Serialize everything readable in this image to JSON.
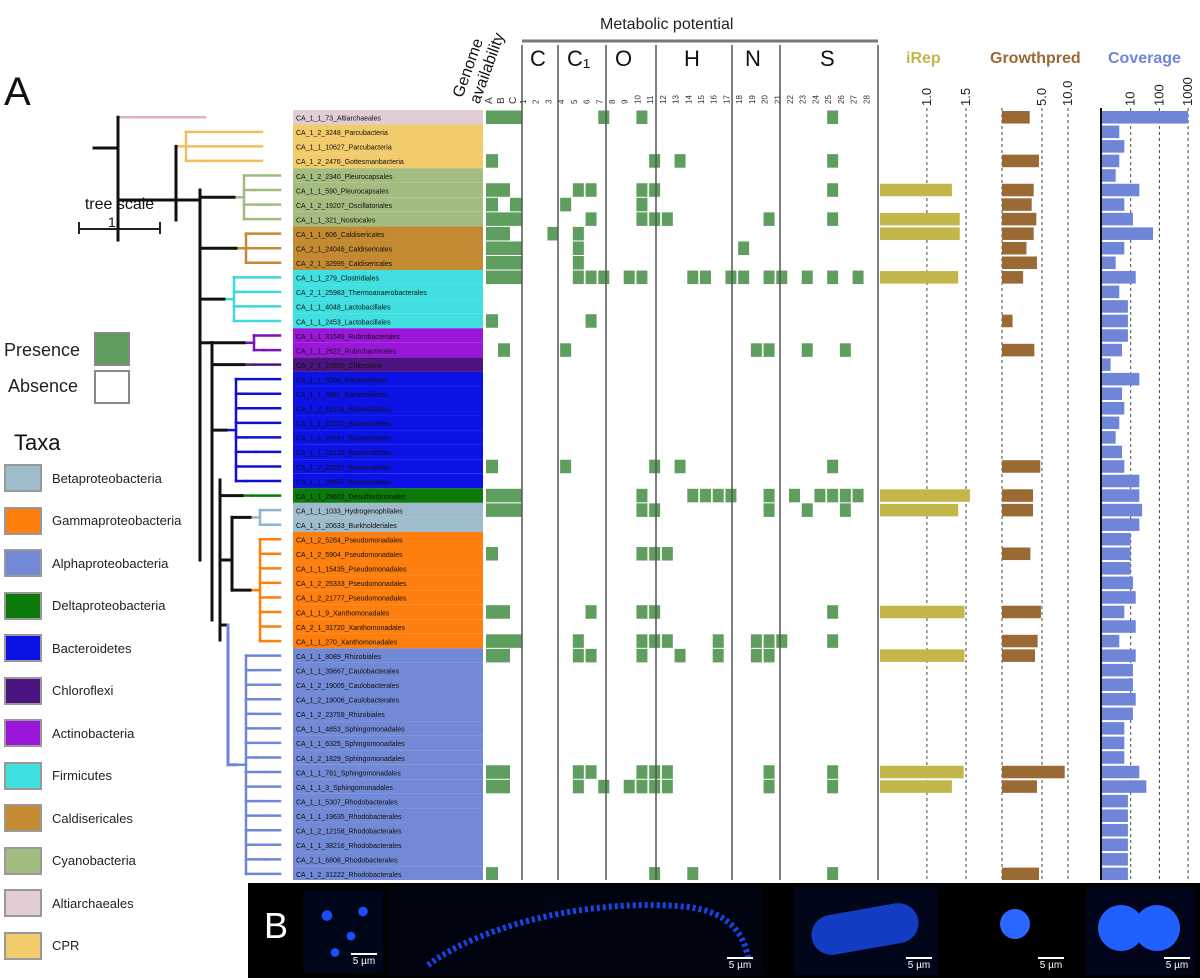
{
  "panel_a_label": "A",
  "panel_b_label": "B",
  "tree_scale": {
    "label": "tree scale",
    "value": "1"
  },
  "presence_label": "Presence",
  "absence_label": "Absence",
  "taxa_title": "Taxa",
  "taxa": [
    {
      "name": "Betaproteobacteria",
      "color": "#9fbccc"
    },
    {
      "name": "Gammaproteobacteria",
      "color": "#ff7f0e"
    },
    {
      "name": "Alphaproteobacteria",
      "color": "#7289d6"
    },
    {
      "name": "Deltaproteobacteria",
      "color": "#0b7a0b"
    },
    {
      "name": "Bacteroidetes",
      "color": "#0a12e6"
    },
    {
      "name": "Chloroflexi",
      "color": "#4b1480"
    },
    {
      "name": "Actinobacteria",
      "color": "#9a16d8"
    },
    {
      "name": "Firmicutes",
      "color": "#40e0e0"
    },
    {
      "name": "Caldisericales",
      "color": "#c48a32"
    },
    {
      "name": "Cyanobacteria",
      "color": "#a3bd80"
    },
    {
      "name": "Altiarchaeales",
      "color": "#e2cdd6"
    },
    {
      "name": "CPR",
      "color": "#f2cb6a"
    }
  ],
  "headers": {
    "genome": [
      "Genome",
      "availability"
    ],
    "metabolic": "Metabolic potential",
    "groups": [
      "C",
      "C₁",
      "O",
      "H",
      "N",
      "S"
    ],
    "iRep": "iRep",
    "growthpred": "Growthpred",
    "coverage": "Coverage",
    "abc": "A B C"
  },
  "iRep_ticks": [
    "1.0",
    "1.5"
  ],
  "growth_ticks": [
    "5.0",
    "10.0"
  ],
  "coverage_ticks": [
    "10",
    "100",
    "1000"
  ],
  "genomes": [
    "CA_1_1_73_Altiarchaeales",
    "CA_1_2_3248_Parcubacteria",
    "CA_1_1_10627_Parcubacteria",
    "CA_1_2_2476_Gottesmanbacteria",
    "CA_1_2_2340_Pleurocapsales",
    "CA_1_1_590_Pleurocapsales",
    "CA_1_2_19207_Oscillatoriales",
    "CA_1_1_321_Nostocales",
    "CA_1_1_606_Caldisericales",
    "CA_2_1_24046_Caldisericales",
    "CA_2_1_32995_Caldisericales",
    "CA_1_1_279_Clostridiales",
    "CA_2_1_25983_Thermoanaerobacterales",
    "CA_1_1_4048_Lactobacillales",
    "CA_1_1_2453_Lactobacillales",
    "CA_1_1_31549_Rubrobacterales",
    "CA_1_1_2622_Rubrobacterales",
    "CA_2_1_29690_Chloroflexi",
    "CA_1_1_5004_Bacteroidetes",
    "CA_1_1_2861_Bacteroidetes",
    "CA_1_2_19104_Bacteroidetes",
    "CA_1_1_22270_Bacteroidetes",
    "CA_1_2_25161_Bacteroidetes",
    "CA_1_1_22135_Bacteroidetes",
    "CA_1_2_20151_Bacteroidetes",
    "CA_1_1_29657_Bacteroidetes",
    "CA_1_1_29602_Desulfovibrionales",
    "CA_1_1_1033_Hydrogenophilales",
    "CA_1_1_20633_Burkholderiales",
    "CA_1_2_5284_Pseudomonadales",
    "CA_1_2_5904_Pseudomonadales",
    "CA_1_1_15435_Pseudomonadales",
    "CA_1_2_25333_Pseudomonadales",
    "CA_1_2_21777_Pseudomonadales",
    "CA_1_1_9_Xanthomonadales",
    "CA_2_1_31720_Xanthomonadales",
    "CA_1_1_270_Xanthomonadales",
    "CA_1_1_8089_Rhizobiales",
    "CA_1_1_39667_Caulobacterales",
    "CA_1_2_19005_Caulobacterales",
    "CA_1_2_19006_Caulobacterales",
    "CA_1_2_23759_Rhizobiales",
    "CA_1_1_4853_Sphingomonadales",
    "CA_1_1_6325_Sphingomonadales",
    "CA_1_2_1829_Sphingomonadales",
    "CA_1_1_781_Sphingomonadales",
    "CA_1_1_3_Sphingomonadales",
    "CA_1_1_5307_Rhodobacterales",
    "CA_1_1_19635_Rhodobacterales",
    "CA_1_2_12158_Rhodobacterales",
    "CA_1_1_38216_Rhodobacterales",
    "CA_2_1_6808_Rhodobacterales",
    "CA_1_2_31222_Rhodobacterales"
  ],
  "row_colors": [
    "#e2cdd6",
    "#f2cb6a",
    "#f2cb6a",
    "#f2cb6a",
    "#a3bd80",
    "#a3bd80",
    "#a3bd80",
    "#a3bd80",
    "#c48a32",
    "#c48a32",
    "#c48a32",
    "#40e0e0",
    "#40e0e0",
    "#40e0e0",
    "#40e0e0",
    "#9a16d8",
    "#9a16d8",
    "#4b1480",
    "#0a12e6",
    "#0a12e6",
    "#0a12e6",
    "#0a12e6",
    "#0a12e6",
    "#0a12e6",
    "#0a12e6",
    "#0a12e6",
    "#0b7a0b",
    "#9fbccc",
    "#9fbccc",
    "#ff7f0e",
    "#ff7f0e",
    "#ff7f0e",
    "#ff7f0e",
    "#ff7f0e",
    "#ff7f0e",
    "#ff7f0e",
    "#ff7f0e",
    "#7289d6",
    "#7289d6",
    "#7289d6",
    "#7289d6",
    "#7289d6",
    "#7289d6",
    "#7289d6",
    "#7289d6",
    "#7289d6",
    "#7289d6",
    "#7289d6",
    "#7289d6",
    "#7289d6",
    "#7289d6",
    "#7289d6",
    "#7289d6"
  ],
  "presence_color": "#5f9e5f",
  "iRep_color": "#c3b64a",
  "growth_color": "#9a6a35",
  "coverage_color": "#6f86d8",
  "presence_matrix": [
    [
      0,
      1,
      2,
      7,
      10,
      25
    ],
    [],
    [],
    [
      0,
      11,
      13,
      25
    ],
    [],
    [
      0,
      1,
      5,
      6,
      10,
      11,
      25
    ],
    [
      0,
      2,
      4,
      10
    ],
    [
      0,
      1,
      2,
      6,
      10,
      11,
      12,
      20,
      25
    ],
    [
      0,
      1,
      3,
      5
    ],
    [
      0,
      1,
      2,
      5,
      18
    ],
    [
      0,
      1,
      2,
      5
    ],
    [
      0,
      1,
      2,
      5,
      6,
      7,
      9,
      10,
      14,
      15,
      17,
      18,
      20,
      21,
      23,
      25,
      27
    ],
    [],
    [],
    [
      0,
      6
    ],
    [],
    [
      1,
      4,
      19,
      20,
      23,
      26
    ],
    [],
    [],
    [],
    [],
    [],
    [],
    [],
    [
      0,
      4,
      11,
      13,
      25
    ],
    [],
    [
      0,
      1,
      2,
      10,
      14,
      15,
      16,
      17,
      20,
      22,
      24,
      25,
      26,
      27
    ],
    [
      0,
      1,
      2,
      10,
      11,
      20,
      23,
      26
    ],
    [],
    [],
    [
      0,
      10,
      11,
      12
    ],
    [],
    [],
    [],
    [
      0,
      1,
      6,
      10,
      11,
      25
    ],
    [],
    [
      0,
      1,
      2,
      5,
      10,
      11,
      12,
      16,
      19,
      20,
      21,
      25
    ],
    [
      0,
      1,
      5,
      6,
      10,
      13,
      16,
      19,
      20
    ],
    [],
    [],
    [],
    [],
    [],
    [],
    [],
    [
      0,
      1,
      5,
      6,
      10,
      11,
      12,
      20,
      25
    ],
    [
      0,
      1,
      5,
      7,
      9,
      10,
      11,
      12,
      20,
      25
    ],
    [],
    [],
    [],
    [],
    [],
    [
      0,
      11,
      14,
      25
    ]
  ],
  "iRep_values": [
    null,
    null,
    null,
    null,
    null,
    1.32,
    null,
    1.42,
    1.42,
    null,
    null,
    1.4,
    null,
    null,
    null,
    null,
    null,
    null,
    null,
    null,
    null,
    null,
    null,
    null,
    null,
    null,
    1.55,
    1.4,
    null,
    null,
    null,
    null,
    null,
    null,
    1.48,
    null,
    null,
    1.48,
    null,
    null,
    null,
    null,
    null,
    null,
    null,
    1.47,
    1.32,
    null,
    null,
    null,
    null,
    null,
    null
  ],
  "growth_values": [
    4.2,
    null,
    null,
    5.6,
    null,
    4.8,
    4.5,
    5.2,
    4.8,
    3.7,
    5.3,
    3.2,
    null,
    null,
    1.6,
    null,
    4.9,
    null,
    null,
    null,
    null,
    null,
    null,
    null,
    5.8,
    null,
    4.7,
    4.7,
    null,
    null,
    4.3,
    null,
    null,
    null,
    5.9,
    null,
    5.4,
    5.0,
    null,
    null,
    null,
    null,
    null,
    null,
    null,
    9.5,
    5.3,
    null,
    null,
    null,
    null,
    null,
    5.6
  ],
  "coverage_values": [
    1000,
    4,
    6,
    4,
    3,
    20,
    6,
    12,
    60,
    6,
    3,
    15,
    4,
    8,
    8,
    8,
    5,
    2,
    20,
    5,
    6,
    4,
    3,
    5,
    6,
    20,
    20,
    25,
    20,
    10,
    10,
    10,
    12,
    15,
    6,
    15,
    4,
    15,
    12,
    12,
    15,
    12,
    6,
    6,
    6,
    20,
    35,
    8,
    8,
    8,
    8,
    8,
    8
  ],
  "micrograph_scales": [
    "5 µm",
    "5 µm",
    "5 µm",
    "5 µm",
    "5 µm"
  ]
}
